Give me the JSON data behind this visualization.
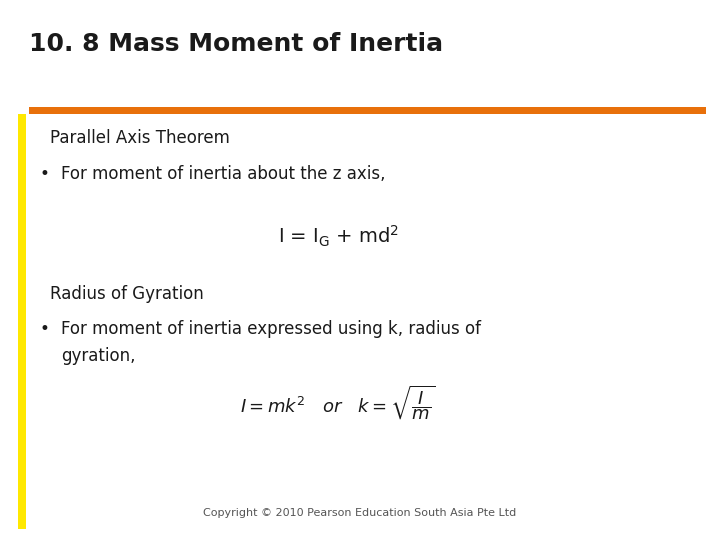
{
  "title": "10. 8 Mass Moment of Inertia",
  "title_fontsize": 18,
  "title_color": "#1a1a1a",
  "orange_bar_color": "#E8700A",
  "yellow_bar_color": "#FFE800",
  "bg_color": "#FFFFFF",
  "section1_heading": "Parallel Axis Theorem",
  "section1_bullet": "For moment of inertia about the z axis,",
  "section2_heading": "Radius of Gyration",
  "section2_bullet_line1": "For moment of inertia expressed using k, radius of",
  "section2_bullet_line2": "gyration,",
  "copyright": "Copyright © 2010 Pearson Education South Asia Pte Ltd",
  "heading_fontsize": 12,
  "body_fontsize": 12,
  "formula1_fontsize": 14,
  "formula2_fontsize": 13,
  "copyright_fontsize": 8
}
